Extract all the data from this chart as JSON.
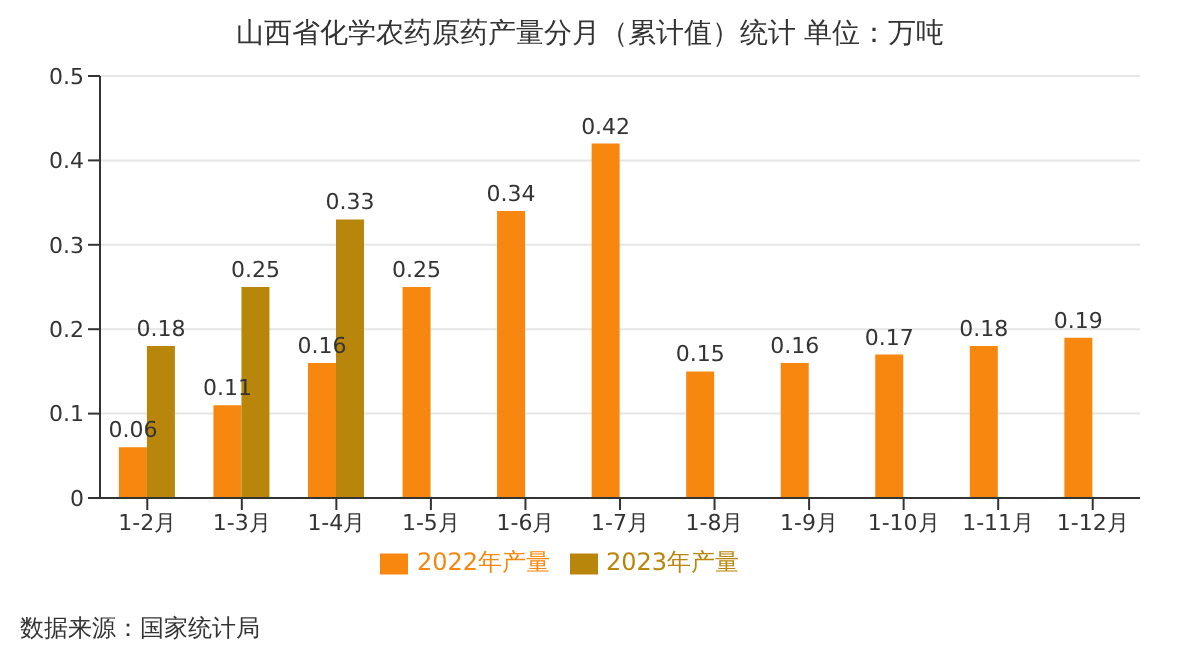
{
  "chart_data": {
    "type": "bar",
    "title": "山西省化学农药原药产量分月（累计值）统计 单位：万吨",
    "categories": [
      "1-2月",
      "1-3月",
      "1-4月",
      "1-5月",
      "1-6月",
      "1-7月",
      "1-8月",
      "1-9月",
      "1-10月",
      "1-11月",
      "1-12月"
    ],
    "series": [
      {
        "name": "2022年产量",
        "color": "#f7870f",
        "values": [
          0.06,
          0.11,
          0.16,
          0.25,
          0.34,
          0.42,
          0.15,
          0.16,
          0.17,
          0.18,
          0.19
        ]
      },
      {
        "name": "2023年产量",
        "color": "#b8860b",
        "values": [
          0.18,
          0.25,
          0.33,
          null,
          null,
          null,
          null,
          null,
          null,
          null,
          null
        ]
      }
    ],
    "ylim": [
      0,
      0.5
    ],
    "yticks": [
      0,
      0.1,
      0.2,
      0.3,
      0.4,
      0.5
    ],
    "grid": "y",
    "legend": "bottom",
    "data_labels": true,
    "annotations": [
      "数据来源：国家统计局"
    ]
  }
}
